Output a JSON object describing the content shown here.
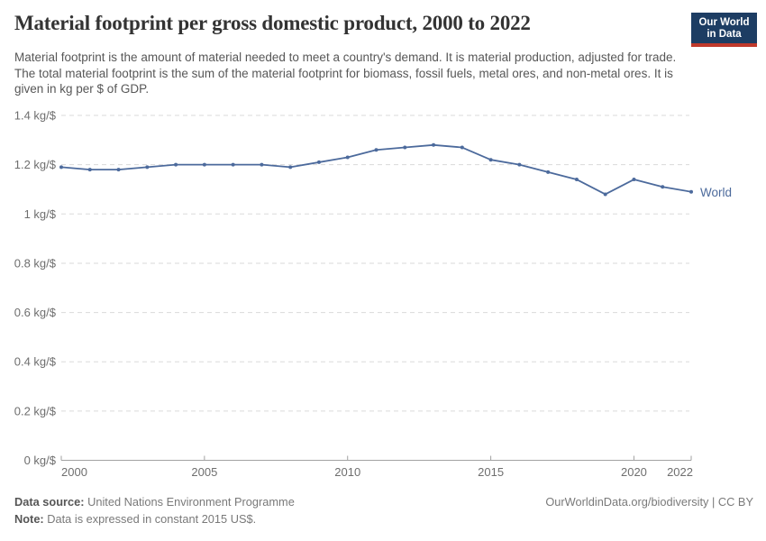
{
  "header": {
    "title": "Material footprint per gross domestic product, 2000 to 2022",
    "logo": {
      "line1": "Our World",
      "line2": "in Data"
    }
  },
  "subtitle": "Material footprint is the amount of material needed to meet a country's demand. It is material production, adjusted for trade. The total material footprint is the sum of the material footprint for biomass, fossil fuels, metal ores, and non-metal ores. It is given in kg per $ of GDP.",
  "chart_data": {
    "type": "line",
    "title": "Material footprint per gross domestic product, 2000 to 2022",
    "xlabel": "",
    "ylabel": "",
    "unit": "kg/$",
    "grid": true,
    "legend_position": "end-of-line",
    "ylim": [
      0,
      1.4
    ],
    "x": [
      2000,
      2001,
      2002,
      2003,
      2004,
      2005,
      2006,
      2007,
      2008,
      2009,
      2010,
      2011,
      2012,
      2013,
      2014,
      2015,
      2016,
      2017,
      2018,
      2019,
      2020,
      2021,
      2022
    ],
    "series": [
      {
        "name": "World",
        "color": "#4c6a9c",
        "values": [
          1.19,
          1.18,
          1.18,
          1.19,
          1.2,
          1.2,
          1.2,
          1.2,
          1.19,
          1.21,
          1.23,
          1.26,
          1.27,
          1.28,
          1.27,
          1.22,
          1.2,
          1.17,
          1.14,
          1.08,
          1.14,
          1.11,
          1.09
        ]
      }
    ],
    "y_ticks": [
      {
        "value": 0,
        "label": "0 kg/$"
      },
      {
        "value": 0.2,
        "label": "0.2 kg/$"
      },
      {
        "value": 0.4,
        "label": "0.4 kg/$"
      },
      {
        "value": 0.6,
        "label": "0.6 kg/$"
      },
      {
        "value": 0.8,
        "label": "0.8 kg/$"
      },
      {
        "value": 1,
        "label": "1 kg/$"
      },
      {
        "value": 1.2,
        "label": "1.2 kg/$"
      },
      {
        "value": 1.4,
        "label": "1.4 kg/$"
      }
    ],
    "x_tick_years": [
      2000,
      2005,
      2010,
      2015,
      2020,
      2022
    ]
  },
  "footer": {
    "datasource_label": "Data source:",
    "datasource_value": "United Nations Environment Programme",
    "note_label": "Note:",
    "note_value": "Data is expressed in constant 2015 US$.",
    "link": "OurWorldinData.org/biodiversity | CC BY"
  },
  "colors": {
    "line": "#4c6a9c",
    "grid": "#dadada",
    "axis": "#a2a2a2",
    "tick_text": "#6e6e6e",
    "logo_bg": "#1d3d63",
    "logo_stripe": "#c0392b"
  }
}
